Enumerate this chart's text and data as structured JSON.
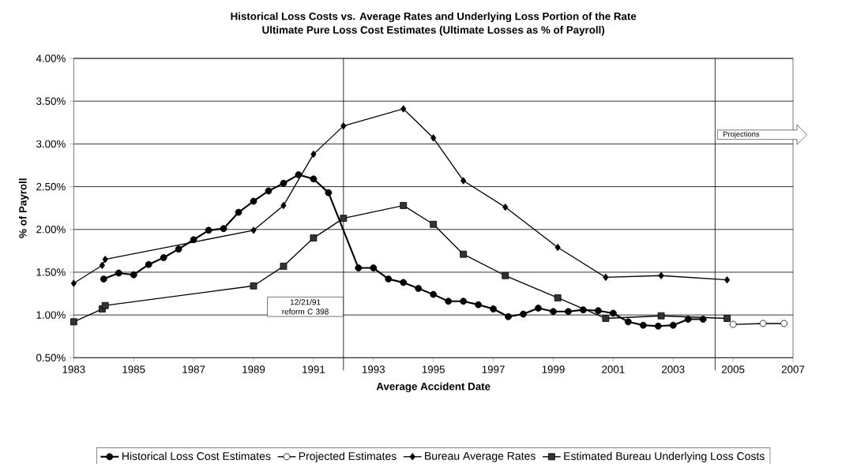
{
  "chart_data": {
    "type": "line",
    "title": "Historical Loss Costs vs. Average Rates and Underlying Loss Portion of the Rate",
    "subtitle": "Ultimate Pure Loss Cost Estimates (Ultimate Losses as % of Payroll)",
    "xlabel": "Average Accident Date",
    "ylabel": "% of Payroll",
    "xlim": [
      1983,
      2007
    ],
    "xticks": [
      1983,
      1985,
      1987,
      1989,
      1991,
      1993,
      1995,
      1997,
      1999,
      2001,
      2003,
      2005,
      2007
    ],
    "ylim": [
      0.5,
      4.0
    ],
    "yticks": [
      {
        "value": 0.5,
        "label": "0.50%"
      },
      {
        "value": 1.0,
        "label": "1.00%"
      },
      {
        "value": 1.5,
        "label": "1.50%"
      },
      {
        "value": 2.0,
        "label": "2.00%"
      },
      {
        "value": 2.5,
        "label": "2.50%"
      },
      {
        "value": 3.0,
        "label": "3.00%"
      },
      {
        "value": 3.5,
        "label": "3.50%"
      },
      {
        "value": 4.0,
        "label": "4.00%"
      }
    ],
    "grid": "y",
    "legend": "bottom",
    "series": [
      {
        "name": "Historical Loss Cost Estimates",
        "color": "#000000",
        "marker": "circle",
        "x": [
          1984,
          1984.5,
          1985,
          1985.5,
          1986,
          1986.5,
          1987,
          1987.5,
          1988,
          1988.5,
          1989,
          1989.5,
          1990,
          1990.5,
          1991,
          1991.5,
          1992,
          1992.5,
          1993,
          1993.5,
          1994,
          1994.5,
          1995,
          1995.5,
          1996,
          1996.5,
          1997,
          1997.5,
          1998,
          1998.5,
          1999,
          1999.5,
          2000,
          2000.5,
          2001,
          2001.5,
          2002,
          2002.5,
          2003,
          2003.5,
          2004
        ],
        "values": [
          1.42,
          1.49,
          1.47,
          1.59,
          1.67,
          1.77,
          1.88,
          1.99,
          2.01,
          2.2,
          2.33,
          2.45,
          2.54,
          2.64,
          2.59,
          2.43,
          null,
          1.55,
          1.55,
          1.42,
          1.38,
          1.31,
          1.24,
          1.16,
          1.16,
          1.12,
          1.07,
          0.98,
          1.01,
          1.08,
          1.04,
          1.04,
          1.06,
          1.05,
          1.02,
          0.92,
          0.88,
          0.87,
          0.88,
          0.95,
          0.95
        ]
      },
      {
        "name": "Projected Estimates",
        "color": "#ffffff",
        "marker": "circle",
        "x": [
          2005,
          2006,
          2006.7
        ],
        "values": [
          0.89,
          0.9,
          0.9
        ]
      },
      {
        "name": "Bureau Average Rates",
        "color": "#000000",
        "marker": "diamond",
        "x": [
          1983,
          1983.95,
          1984.05,
          1989,
          1990,
          1991,
          1992,
          1994,
          1995,
          1996,
          1997.4,
          1999.15,
          2000.75,
          2002.6,
          2004.8
        ],
        "values": [
          1.37,
          1.58,
          1.65,
          1.99,
          2.28,
          2.88,
          3.21,
          3.41,
          3.07,
          2.57,
          2.26,
          1.79,
          1.44,
          1.46,
          1.41
        ]
      },
      {
        "name": "Estimated Bureau Underlying Loss Costs",
        "color": "#333333",
        "marker": "square",
        "x": [
          1983,
          1983.95,
          1984.05,
          1989,
          1990,
          1991,
          1992,
          1994,
          1995,
          1996,
          1997.4,
          1999.15,
          2000.75,
          2002.6,
          2004.8
        ],
        "values": [
          0.92,
          1.07,
          1.11,
          1.34,
          1.57,
          1.9,
          2.13,
          2.28,
          2.06,
          1.71,
          1.46,
          1.2,
          0.96,
          0.99,
          0.96
        ]
      }
    ],
    "ref_lines": [
      {
        "axis": "x",
        "value": 1992,
        "label": "12/21/91 reform C 398"
      },
      {
        "axis": "x",
        "value": 2004.4,
        "label": "Projections"
      }
    ]
  }
}
